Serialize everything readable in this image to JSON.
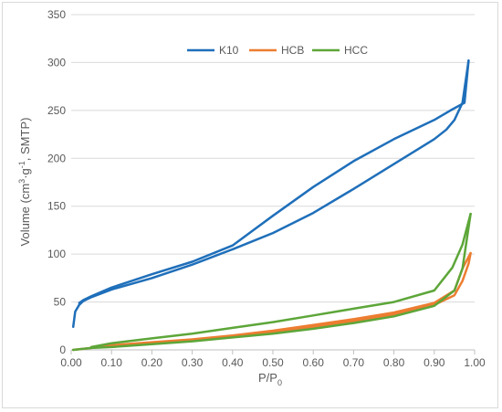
{
  "chart_data": {
    "type": "line",
    "title": "",
    "xlabel_main": "P/P",
    "xlabel_sub": "0",
    "ylabel_parts": [
      "Volume (cm",
      "3",
      "·g",
      "-1",
      ", SMTP)"
    ],
    "xlim": [
      0,
      1
    ],
    "ylim": [
      0,
      350
    ],
    "x_ticks": [
      "0.00",
      "0.10",
      "0.20",
      "0.30",
      "0.40",
      "0.50",
      "0.60",
      "0.70",
      "0.80",
      "0.90",
      "1.00"
    ],
    "y_ticks": [
      "0",
      "50",
      "100",
      "150",
      "200",
      "250",
      "300",
      "350"
    ],
    "grid": "horizontal",
    "legend_position": "top-center",
    "series": [
      {
        "name": "K10",
        "color": "#1f6fba",
        "adsorption": [
          [
            0.005,
            24
          ],
          [
            0.01,
            40
          ],
          [
            0.02,
            47
          ],
          [
            0.03,
            51
          ],
          [
            0.05,
            55
          ],
          [
            0.1,
            63
          ],
          [
            0.2,
            75
          ],
          [
            0.3,
            89
          ],
          [
            0.4,
            105
          ],
          [
            0.5,
            122
          ],
          [
            0.6,
            143
          ],
          [
            0.7,
            168
          ],
          [
            0.8,
            194
          ],
          [
            0.9,
            220
          ],
          [
            0.93,
            230
          ],
          [
            0.95,
            240
          ],
          [
            0.97,
            258
          ],
          [
            0.985,
            302
          ]
        ],
        "desorption": [
          [
            0.985,
            302
          ],
          [
            0.975,
            258
          ],
          [
            0.94,
            250
          ],
          [
            0.9,
            240
          ],
          [
            0.8,
            220
          ],
          [
            0.7,
            197
          ],
          [
            0.6,
            170
          ],
          [
            0.5,
            140
          ],
          [
            0.4,
            109
          ],
          [
            0.3,
            92
          ],
          [
            0.2,
            79
          ],
          [
            0.1,
            65
          ],
          [
            0.05,
            56
          ],
          [
            0.03,
            52
          ],
          [
            0.02,
            49
          ]
        ]
      },
      {
        "name": "HCB",
        "color": "#ed7d31",
        "adsorption": [
          [
            0.005,
            0
          ],
          [
            0.05,
            2
          ],
          [
            0.1,
            4
          ],
          [
            0.2,
            7
          ],
          [
            0.3,
            10
          ],
          [
            0.4,
            14
          ],
          [
            0.5,
            18
          ],
          [
            0.6,
            24
          ],
          [
            0.7,
            30
          ],
          [
            0.8,
            37
          ],
          [
            0.9,
            47
          ],
          [
            0.95,
            57
          ],
          [
            0.97,
            72
          ],
          [
            0.985,
            90
          ],
          [
            0.99,
            101
          ]
        ],
        "desorption": [
          [
            0.99,
            101
          ],
          [
            0.97,
            85
          ],
          [
            0.95,
            62
          ],
          [
            0.9,
            49
          ],
          [
            0.8,
            39
          ],
          [
            0.7,
            32
          ],
          [
            0.6,
            26
          ],
          [
            0.5,
            20
          ],
          [
            0.4,
            15
          ],
          [
            0.3,
            11
          ],
          [
            0.2,
            8
          ],
          [
            0.1,
            5
          ],
          [
            0.05,
            3
          ]
        ]
      },
      {
        "name": "HCC",
        "color": "#5da639",
        "adsorption": [
          [
            0.005,
            0
          ],
          [
            0.05,
            2
          ],
          [
            0.1,
            3
          ],
          [
            0.2,
            6
          ],
          [
            0.3,
            9
          ],
          [
            0.4,
            13
          ],
          [
            0.5,
            17
          ],
          [
            0.6,
            22
          ],
          [
            0.7,
            28
          ],
          [
            0.8,
            35
          ],
          [
            0.9,
            46
          ],
          [
            0.95,
            62
          ],
          [
            0.97,
            85
          ],
          [
            0.99,
            142
          ]
        ],
        "desorption": [
          [
            0.99,
            142
          ],
          [
            0.97,
            110
          ],
          [
            0.945,
            86
          ],
          [
            0.9,
            62
          ],
          [
            0.8,
            50
          ],
          [
            0.7,
            43
          ],
          [
            0.6,
            36
          ],
          [
            0.5,
            29
          ],
          [
            0.4,
            23
          ],
          [
            0.3,
            17
          ],
          [
            0.2,
            12
          ],
          [
            0.1,
            7
          ],
          [
            0.05,
            3
          ]
        ]
      }
    ]
  }
}
